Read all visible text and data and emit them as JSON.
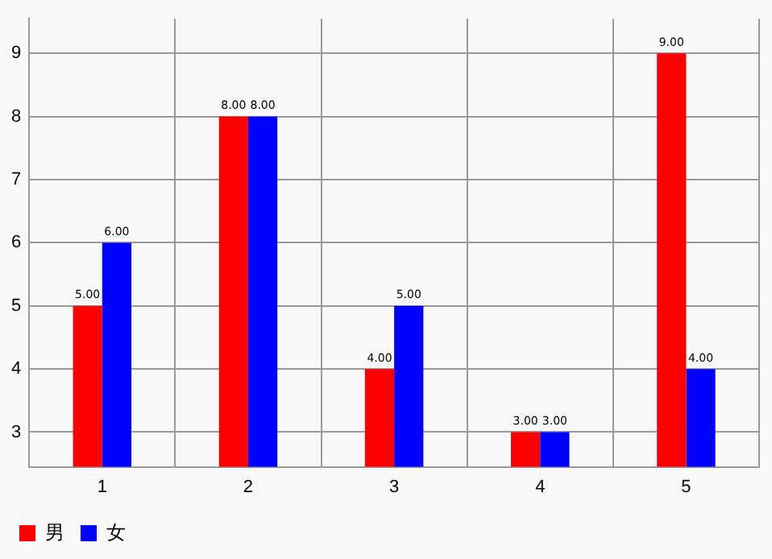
{
  "chart_data": {
    "type": "bar",
    "categories": [
      "1",
      "2",
      "3",
      "4",
      "5"
    ],
    "series": [
      {
        "name": "男",
        "color": "#ff0000",
        "values": [
          5,
          8,
          4,
          3,
          9
        ],
        "value_labels": [
          "5.00",
          "8.00",
          "4.00",
          "3.00",
          "9.00"
        ]
      },
      {
        "name": "女",
        "color": "#0000ff",
        "values": [
          6,
          8,
          5,
          3,
          4
        ],
        "value_labels": [
          "6.00",
          "8.00",
          "5.00",
          "3.00",
          "4.00"
        ]
      }
    ],
    "ylim": [
      2.45,
      9.55
    ],
    "yticks": [
      3,
      4,
      5,
      6,
      7,
      8,
      9
    ],
    "grid": true,
    "legend": "bottom left"
  }
}
